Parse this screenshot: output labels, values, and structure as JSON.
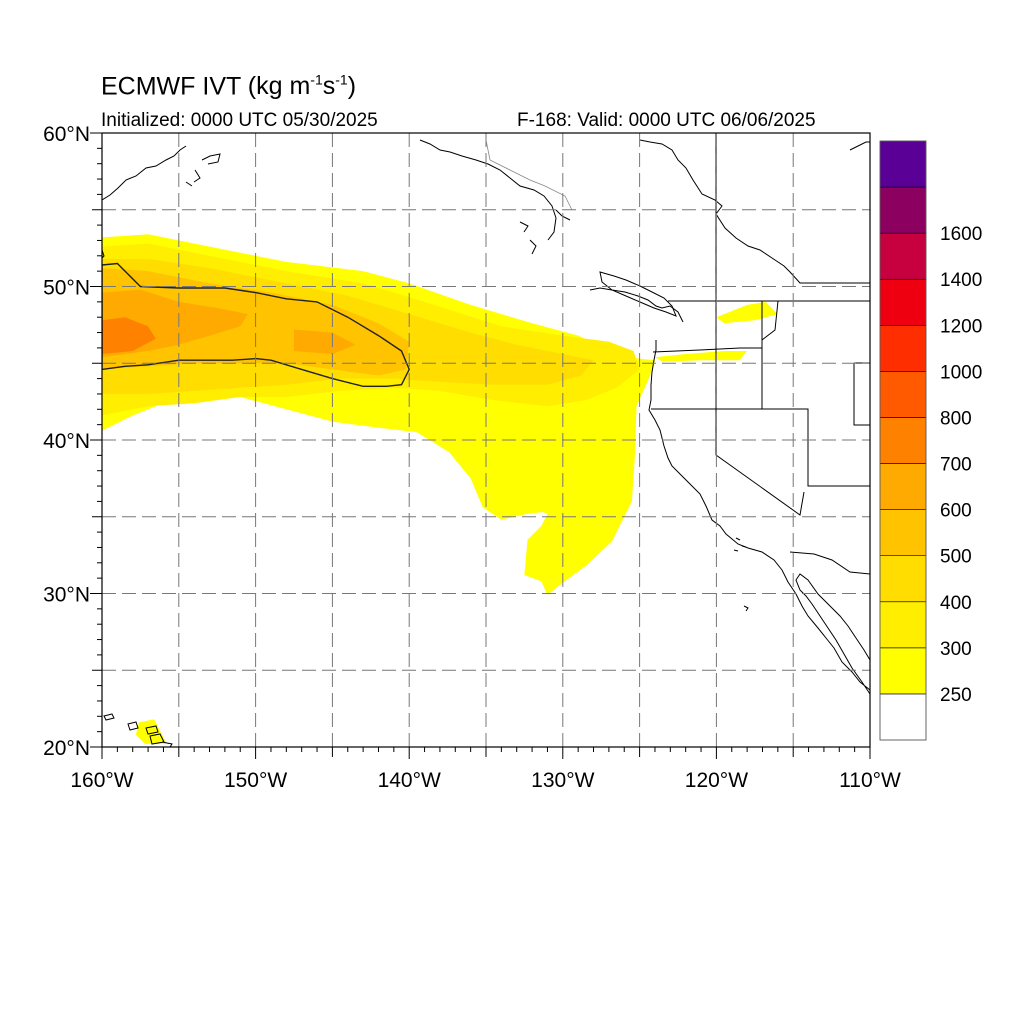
{
  "title": {
    "model": "ECMWF",
    "variable": "IVT",
    "units_base": "(kg m",
    "units_exp1": "-1",
    "units_mid": "s",
    "units_exp2": "-1",
    "units_close": ")"
  },
  "initialized": "Initialized: 0000 UTC 05/30/2025",
  "valid": "F-168: Valid: 0000 UTC 06/06/2025",
  "map": {
    "lon_range": [
      -160,
      -110
    ],
    "lat_range": [
      20,
      60
    ],
    "lat_ticks": [
      {
        "value": 60,
        "label": "60°N"
      },
      {
        "value": 50,
        "label": "50°N"
      },
      {
        "value": 40,
        "label": "40°N"
      },
      {
        "value": 30,
        "label": "30°N"
      },
      {
        "value": 20,
        "label": "20°N"
      }
    ],
    "lon_ticks": [
      {
        "value": -160,
        "label": "160°W"
      },
      {
        "value": -150,
        "label": "150°W"
      },
      {
        "value": -140,
        "label": "140°W"
      },
      {
        "value": -130,
        "label": "130°W"
      },
      {
        "value": -120,
        "label": "120°W"
      },
      {
        "value": -110,
        "label": "110°W"
      }
    ],
    "gridlines": "dashed",
    "gridline_lats": [
      25,
      30,
      35,
      40,
      45,
      50,
      55
    ],
    "gridline_lons": [
      -155,
      -150,
      -145,
      -140,
      -135,
      -130,
      -125,
      -120,
      -115
    ]
  },
  "ivt_field": {
    "description_regions": [
      {
        "level": 250,
        "polygon": [
          [
            -160,
            40.6
          ],
          [
            -160,
            53.2
          ],
          [
            -157,
            53.4
          ],
          [
            -153,
            52.6
          ],
          [
            -148,
            51.6
          ],
          [
            -143,
            51
          ],
          [
            -140,
            50.2
          ],
          [
            -136,
            48.8
          ],
          [
            -132,
            47.6
          ],
          [
            -129,
            46.8
          ],
          [
            -126,
            45.4
          ],
          [
            -124,
            45.2
          ],
          [
            -124.4,
            44
          ],
          [
            -125.2,
            42.2
          ],
          [
            -125.3,
            39
          ],
          [
            -125.5,
            36
          ],
          [
            -126.8,
            33.4
          ],
          [
            -128.5,
            31.8
          ],
          [
            -130,
            30.7
          ],
          [
            -131,
            29.9
          ],
          [
            -131.4,
            30.8
          ],
          [
            -132.5,
            31.2
          ],
          [
            -132.3,
            33.5
          ],
          [
            -131.4,
            34.4
          ],
          [
            -131,
            35.2
          ],
          [
            -131.3,
            35.3
          ],
          [
            -132.3,
            35.2
          ],
          [
            -134,
            34.8
          ],
          [
            -135.2,
            35.6
          ],
          [
            -136,
            37.5
          ],
          [
            -137.4,
            39.2
          ],
          [
            -139.5,
            40.5
          ],
          [
            -142,
            40.8
          ],
          [
            -145,
            41.2
          ],
          [
            -148,
            42
          ],
          [
            -151,
            42.8
          ],
          [
            -153.5,
            42.8
          ],
          [
            -156,
            42.4
          ],
          [
            -158,
            41.6
          ]
        ]
      },
      {
        "level": 300,
        "polygon": [
          [
            -160,
            41.6
          ],
          [
            -160,
            52.6
          ],
          [
            -157,
            52.8
          ],
          [
            -153,
            52
          ],
          [
            -148,
            51
          ],
          [
            -143,
            50.2
          ],
          [
            -139,
            49
          ],
          [
            -134,
            47.4
          ],
          [
            -130,
            46.8
          ],
          [
            -127,
            46.4
          ],
          [
            -125.4,
            45.8
          ],
          [
            -125,
            44.6
          ],
          [
            -126.5,
            43.4
          ],
          [
            -128.5,
            42.6
          ],
          [
            -131,
            42.2
          ],
          [
            -134.5,
            42.6
          ],
          [
            -138,
            43.2
          ],
          [
            -141,
            43.4
          ],
          [
            -144.5,
            43.2
          ],
          [
            -148,
            42.8
          ],
          [
            -151,
            42.8
          ],
          [
            -154,
            42.4
          ],
          [
            -157,
            42.2
          ]
        ]
      },
      {
        "level": 400,
        "polygon": [
          [
            -160,
            43
          ],
          [
            -160,
            51.8
          ],
          [
            -157,
            51.8
          ],
          [
            -153,
            51.2
          ],
          [
            -148,
            50.2
          ],
          [
            -144,
            49.4
          ],
          [
            -140,
            48.2
          ],
          [
            -136,
            47
          ],
          [
            -133,
            46.2
          ],
          [
            -130,
            45.6
          ],
          [
            -128,
            45.2
          ],
          [
            -128.8,
            44.2
          ],
          [
            -131,
            43.6
          ],
          [
            -134.5,
            43.6
          ],
          [
            -138,
            43.8
          ],
          [
            -141,
            44
          ],
          [
            -144.5,
            44
          ],
          [
            -148,
            43.6
          ],
          [
            -151,
            43.4
          ],
          [
            -154,
            43.2
          ],
          [
            -157,
            43
          ]
        ]
      },
      {
        "level": 500,
        "polygon": [
          [
            -160,
            44.6
          ],
          [
            -160,
            51.2
          ],
          [
            -157,
            51
          ],
          [
            -153,
            50.2
          ],
          [
            -149,
            49.6
          ],
          [
            -145,
            48.8
          ],
          [
            -142,
            47.6
          ],
          [
            -140,
            46.4
          ],
          [
            -140.2,
            44.6
          ],
          [
            -142,
            44.2
          ],
          [
            -145,
            44.6
          ],
          [
            -148,
            45
          ],
          [
            -151,
            45
          ],
          [
            -154,
            45
          ],
          [
            -157,
            44.8
          ]
        ]
      },
      {
        "level": 600,
        "polygon": [
          [
            -160,
            45.4
          ],
          [
            -160,
            49.6
          ],
          [
            -157.5,
            49.8
          ],
          [
            -155,
            49
          ],
          [
            -152.5,
            48.6
          ],
          [
            -150.5,
            48.2
          ],
          [
            -151,
            47.4
          ],
          [
            -153,
            46.8
          ],
          [
            -155,
            46.2
          ],
          [
            -157,
            45.8
          ]
        ]
      },
      {
        "level": 600,
        "polygon": [
          [
            -147.5,
            47.2
          ],
          [
            -145,
            47
          ],
          [
            -143.5,
            46.2
          ],
          [
            -145,
            45.6
          ],
          [
            -147.5,
            45.8
          ]
        ]
      },
      {
        "level": 700,
        "polygon": [
          [
            -160,
            45.6
          ],
          [
            -160,
            47.8
          ],
          [
            -158.5,
            48
          ],
          [
            -157,
            47.4
          ],
          [
            -156.5,
            46.6
          ],
          [
            -158,
            45.8
          ]
        ]
      },
      {
        "level": 250,
        "polygon": [
          [
            -118,
            48.8
          ],
          [
            -116.8,
            49
          ],
          [
            -116,
            48.2
          ],
          [
            -117.5,
            47.8
          ],
          [
            -119.5,
            47.6
          ],
          [
            -120,
            48
          ]
        ]
      },
      {
        "level": 250,
        "polygon": [
          [
            -124,
            45.4
          ],
          [
            -122,
            45.6
          ],
          [
            -119.5,
            45.8
          ],
          [
            -118,
            45.8
          ],
          [
            -118.5,
            45.2
          ],
          [
            -121,
            45.2
          ],
          [
            -123.5,
            45.1
          ]
        ]
      },
      {
        "level": 250,
        "polygon": [
          [
            -157.6,
            21.6
          ],
          [
            -156.6,
            21.8
          ],
          [
            -156.2,
            21
          ],
          [
            -155.8,
            20.2
          ],
          [
            -157.2,
            20.2
          ],
          [
            -157.8,
            20.8
          ]
        ]
      }
    ],
    "contour_400": [
      [
        -160,
        44.6
      ],
      [
        -160,
        51.4
      ],
      [
        -159,
        51.5
      ],
      [
        -157.5,
        50
      ],
      [
        -155,
        49.9
      ],
      [
        -152,
        49.9
      ],
      [
        -150,
        49.6
      ],
      [
        -148,
        49.2
      ],
      [
        -146,
        49
      ],
      [
        -144,
        48
      ],
      [
        -142,
        46.8
      ],
      [
        -140.5,
        45.8
      ],
      [
        -140,
        44.6
      ],
      [
        -140.5,
        43.6
      ],
      [
        -141.5,
        43.5
      ],
      [
        -143,
        43.5
      ],
      [
        -145,
        44
      ],
      [
        -147,
        44.6
      ],
      [
        -149,
        45.2
      ],
      [
        -150,
        45.3
      ],
      [
        -151.5,
        45.2
      ],
      [
        -153.5,
        45.2
      ],
      [
        -155,
        45.2
      ],
      [
        -157,
        44.9
      ],
      [
        -158.5,
        44.8
      ]
    ]
  },
  "colorbar": {
    "levels": [
      {
        "label": "",
        "color": "#ffffff"
      },
      {
        "label": "250",
        "color": "#ffff00"
      },
      {
        "label": "300",
        "color": "#ffee00"
      },
      {
        "label": "400",
        "color": "#ffdd00"
      },
      {
        "label": "500",
        "color": "#ffc300"
      },
      {
        "label": "600",
        "color": "#ffaa00"
      },
      {
        "label": "700",
        "color": "#ff8100"
      },
      {
        "label": "800",
        "color": "#ff5a00"
      },
      {
        "label": "1000",
        "color": "#ff2e00"
      },
      {
        "label": "1200",
        "color": "#ee0010"
      },
      {
        "label": "1400",
        "color": "#c70040"
      },
      {
        "label": "1600",
        "color": "#8c0060"
      },
      {
        "label": "",
        "color": "#5a0096"
      }
    ]
  }
}
